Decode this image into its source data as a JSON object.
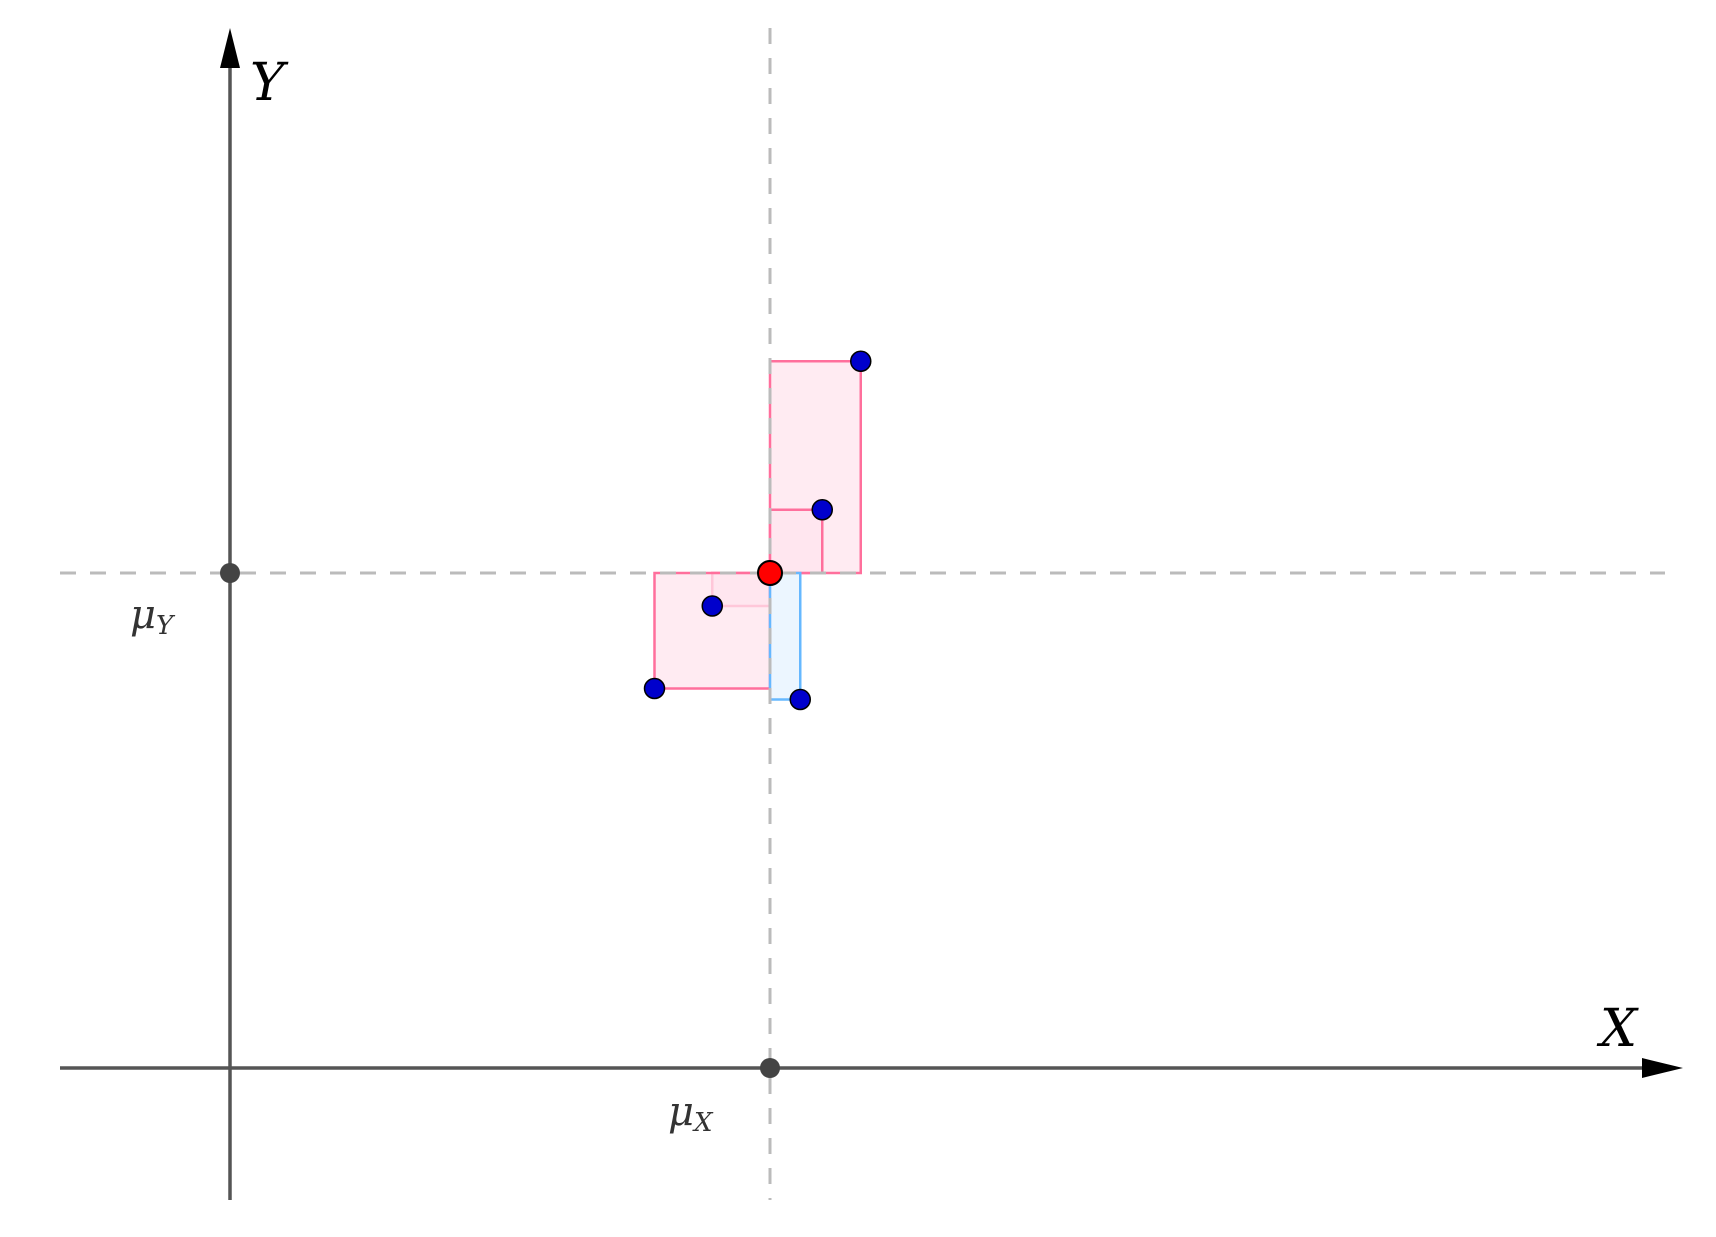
{
  "labels": {
    "x_axis": "X",
    "y_axis": "Y",
    "mu_symbol": "μ",
    "mu_x_sub": "X",
    "mu_y_sub": "Y"
  },
  "colors": {
    "axis": "#555555",
    "guide": "#bbbbbb",
    "arrow": "#000000",
    "point_fill": "#0000cc",
    "mean_fill": "#ff0000",
    "positive_stroke": "#ff6f9c",
    "positive_fill": "#ffe4ee",
    "negative_stroke": "#66b8ff",
    "negative_fill": "#e6f3ff"
  },
  "diagram": {
    "mean": {
      "x": 0,
      "y": 0
    },
    "points": [
      {
        "x": 1.65,
        "y": 3.85
      },
      {
        "x": 0.95,
        "y": 1.15
      },
      {
        "x": -1.05,
        "y": -0.6
      },
      {
        "x": -2.1,
        "y": -2.1
      },
      {
        "x": 0.55,
        "y": -2.3
      }
    ]
  }
}
